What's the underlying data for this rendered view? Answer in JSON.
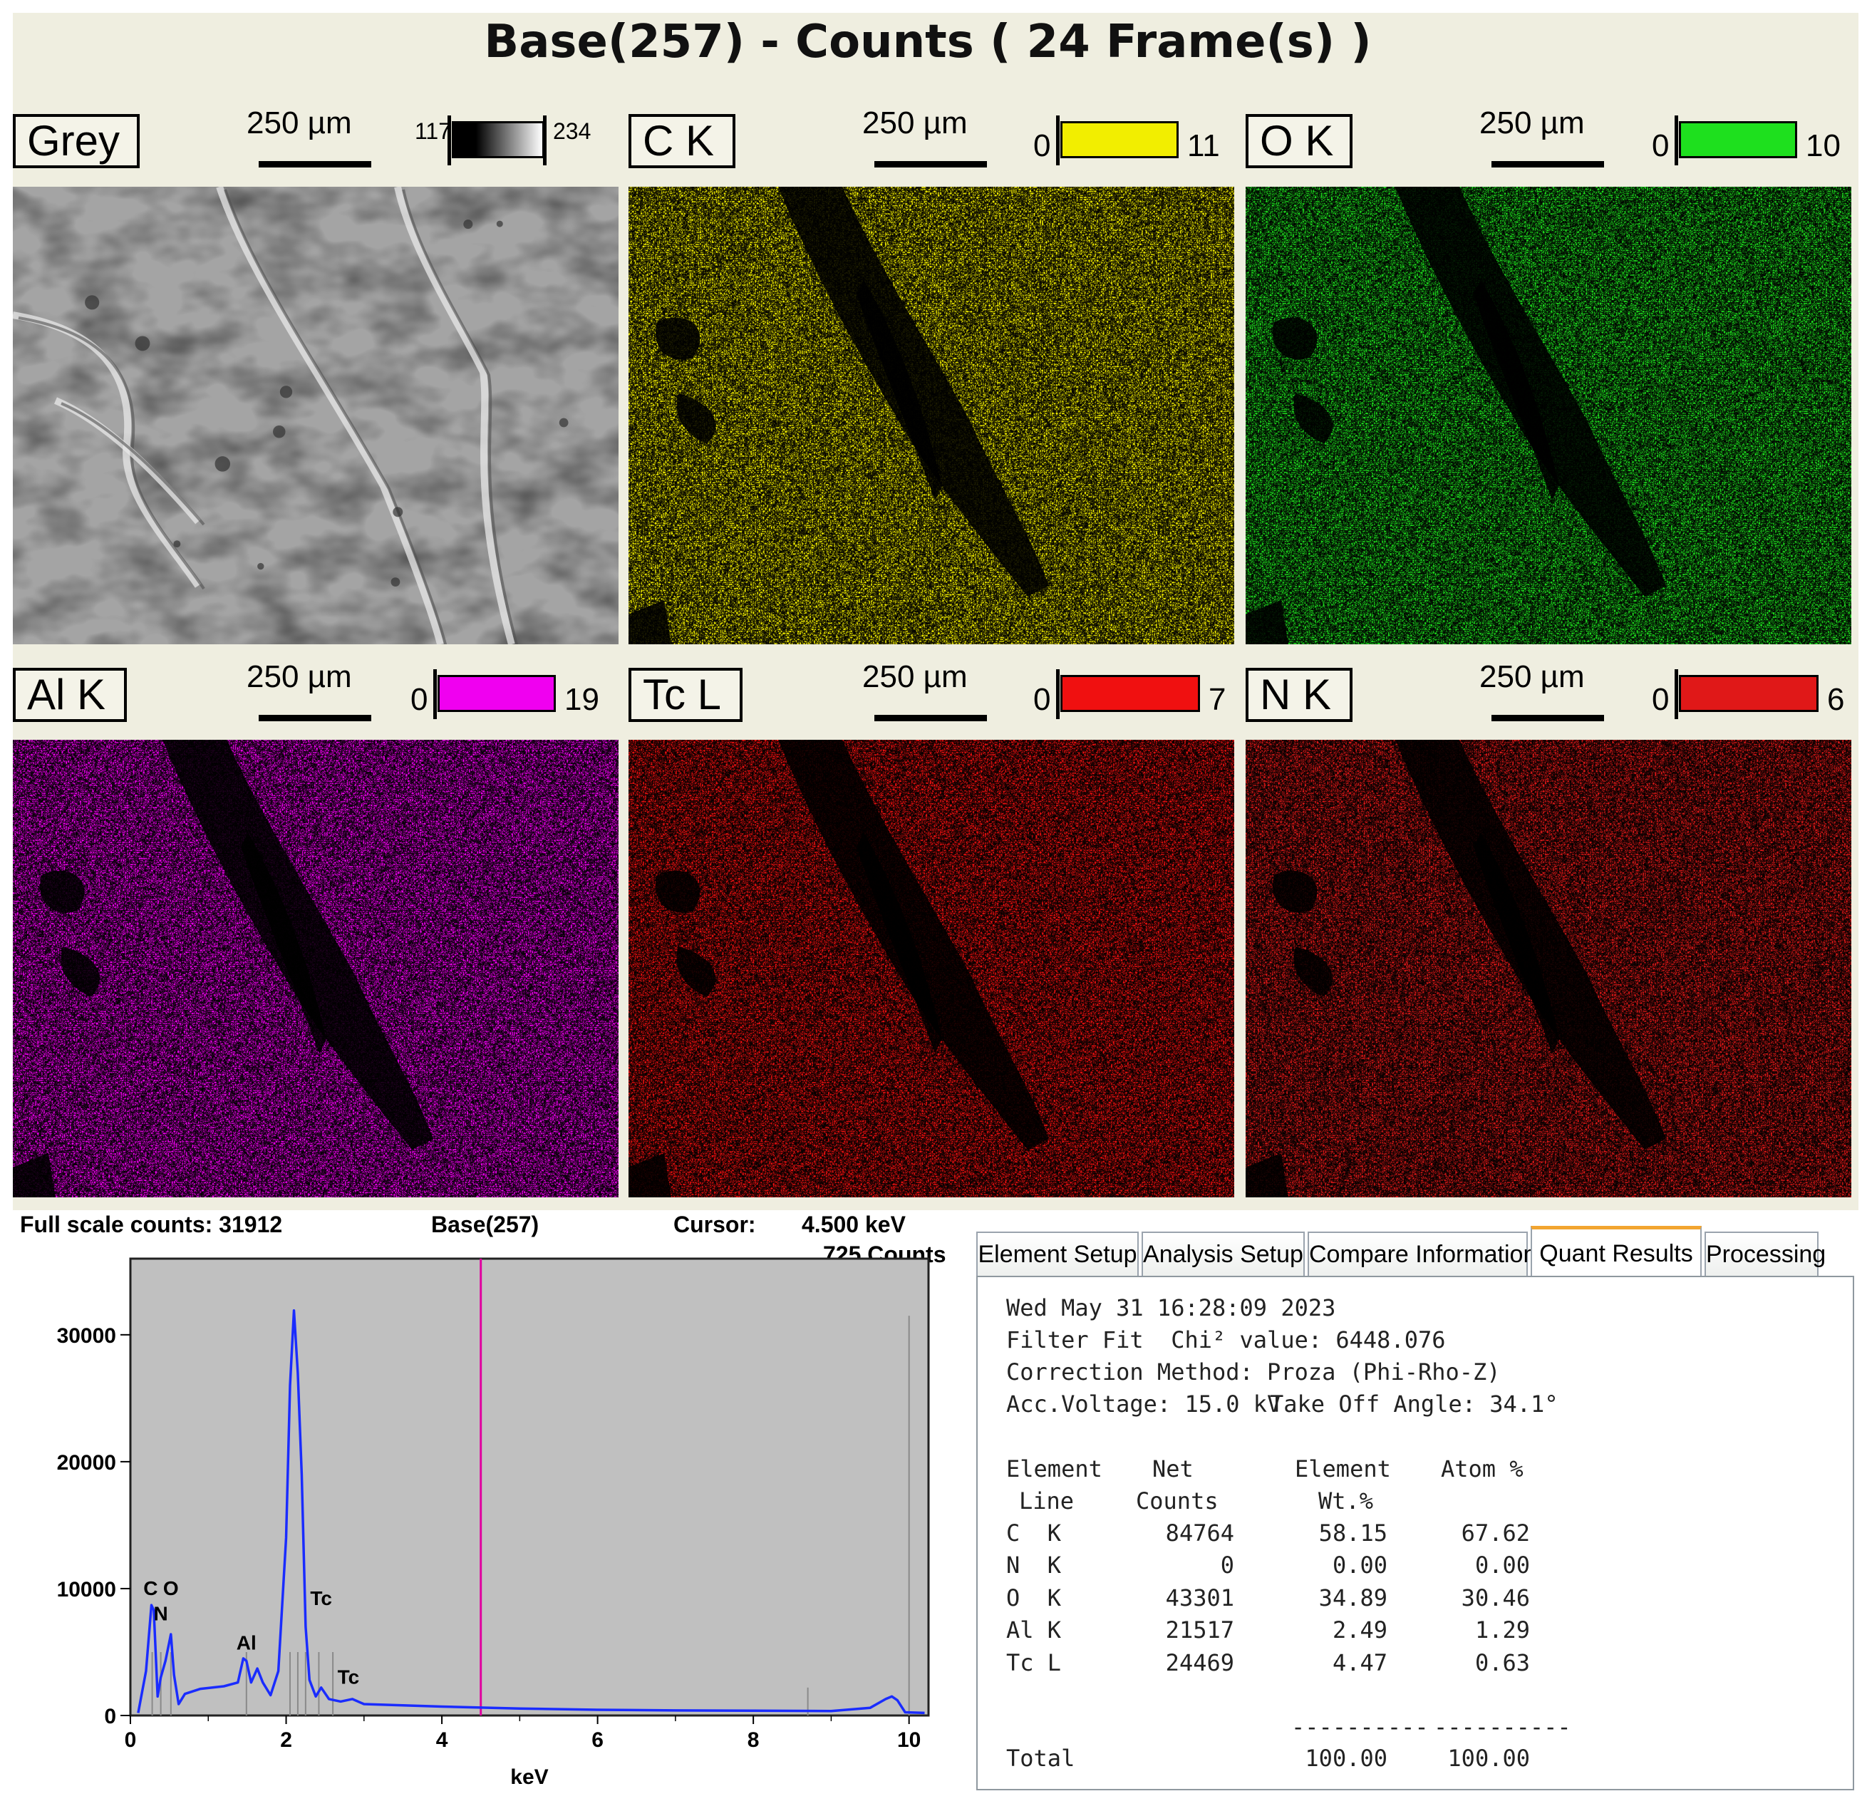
{
  "title": "Base(257) - Counts ( 24 Frame(s) )",
  "scale_label": "250 µm",
  "maps": [
    {
      "label": "Grey",
      "cb_min": "117",
      "cb_max": "234",
      "color": "#808080",
      "kind": "sem"
    },
    {
      "label": "C K",
      "cb_min": "0",
      "cb_max": "11",
      "color": "#f2ee00",
      "kind": "element"
    },
    {
      "label": "O K",
      "cb_min": "0",
      "cb_max": "10",
      "color": "#1ee01e",
      "kind": "element"
    },
    {
      "label": "Al K",
      "cb_min": "0",
      "cb_max": "19",
      "color": "#f000f0",
      "kind": "element"
    },
    {
      "label": "Tc L",
      "cb_min": "0",
      "cb_max": "7",
      "color": "#f01010",
      "kind": "element"
    },
    {
      "label": "N K",
      "cb_min": "0",
      "cb_max": "6",
      "color": "#e01818",
      "kind": "element"
    }
  ],
  "spectrum": {
    "full_scale": "Full scale counts: 31912",
    "name": "Base(257)",
    "cursor_label": "Cursor:",
    "cursor_kev": "4.500 keV",
    "cursor_counts": "725 Counts"
  },
  "chart_data": {
    "type": "line",
    "xlabel": "keV",
    "ylabel": "",
    "xlim": [
      0,
      10.25
    ],
    "ylim": [
      0,
      36000
    ],
    "x_ticks": [
      0,
      2,
      4,
      6,
      8,
      10
    ],
    "y_ticks": [
      0,
      10000,
      20000,
      30000
    ],
    "cursor_x": 4.5,
    "series": [
      {
        "x": [
          0.1,
          0.2,
          0.27,
          0.3,
          0.35,
          0.39,
          0.45,
          0.52,
          0.56,
          0.62,
          0.7,
          0.9,
          1.2,
          1.38,
          1.45,
          1.49,
          1.55,
          1.63,
          1.7,
          1.8,
          1.9,
          2.0,
          2.05,
          2.1,
          2.15,
          2.2,
          2.25,
          2.3,
          2.38,
          2.45,
          2.55,
          2.7,
          2.85,
          3.0,
          3.5,
          4.0,
          5.0,
          6.0,
          7.0,
          8.0,
          9.0,
          9.5,
          9.7,
          9.78,
          9.85,
          9.95,
          10.2
        ],
        "y": [
          200,
          3500,
          8700,
          8300,
          1500,
          3000,
          4300,
          6400,
          3200,
          900,
          1700,
          2100,
          2300,
          2600,
          4500,
          4300,
          2600,
          3700,
          2600,
          1600,
          3500,
          14000,
          26000,
          31912,
          27000,
          19000,
          7000,
          2800,
          1500,
          2200,
          1300,
          1100,
          1300,
          900,
          800,
          700,
          550,
          450,
          400,
          380,
          350,
          600,
          1300,
          1500,
          1200,
          250,
          200
        ]
      }
    ],
    "marker_lines": [
      0.28,
      0.39,
      0.52,
      1.49,
      2.05,
      2.15,
      2.25,
      2.42,
      2.6,
      8.7,
      10.0
    ],
    "peak_labels": [
      {
        "text": "C",
        "x": 0.26,
        "y": 9500
      },
      {
        "text": "O",
        "x": 0.52,
        "y": 9500
      },
      {
        "text": "N",
        "x": 0.39,
        "y": 7500
      },
      {
        "text": "Al",
        "x": 1.49,
        "y": 5200
      },
      {
        "text": "Tc",
        "x": 2.45,
        "y": 8700
      },
      {
        "text": "Tc",
        "x": 2.8,
        "y": 2500
      }
    ]
  },
  "tabs": [
    "Element Setup",
    "Analysis Setup",
    "Compare Information",
    "Quant Results",
    "Processing"
  ],
  "active_tab": "Quant Results",
  "quant": {
    "date": "Wed May 31 16:28:09 2023",
    "filter_fit": "Filter Fit  Chi² value: 6448.076",
    "correction": "Correction Method: Proza (Phi-Rho-Z)",
    "acc_voltage": "Acc.Voltage: 15.0 kV",
    "take_off": "Take Off Angle: 34.1°",
    "headers1": [
      "Element",
      "Net",
      "Element",
      "Atom %"
    ],
    "headers2": [
      "Line",
      "Counts",
      "Wt.%",
      ""
    ],
    "rows": [
      [
        "C  K",
        "84764",
        "58.15",
        "67.62"
      ],
      [
        "N  K",
        "0",
        "0.00",
        "0.00"
      ],
      [
        "O  K",
        "43301",
        "34.89",
        "30.46"
      ],
      [
        "Al K",
        "21517",
        "2.49",
        "1.29"
      ],
      [
        "Tc L",
        "24469",
        "4.47",
        "0.63"
      ]
    ],
    "separator": "----------",
    "total_label": "Total",
    "total_wt": "100.00",
    "total_atom": "100.00"
  }
}
